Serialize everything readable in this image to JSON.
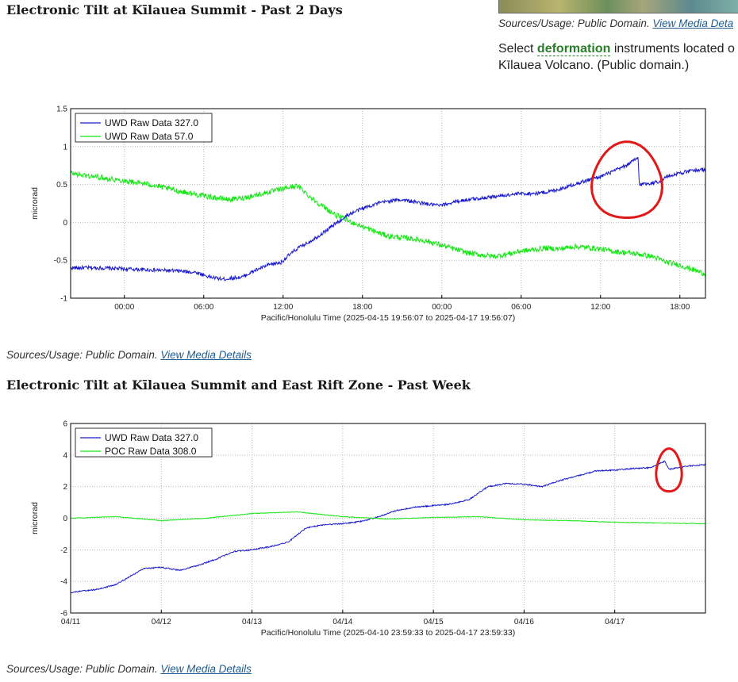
{
  "sidebar": {
    "caption_prefix": "Sources/Usage: Public Domain.",
    "caption_link": "View Media Deta",
    "text_before": "Select ",
    "keyword": "deformation",
    "text_after": " instruments located o",
    "text_line2": "Kīlauea Volcano. (Public domain.)"
  },
  "section1": {
    "heading": "Electronic Tilt at Kīlauea Summit - Past 2 Days",
    "caption_prefix": "Sources/Usage: Public Domain.",
    "caption_link": "View Media Details"
  },
  "section2": {
    "heading": "Electronic Tilt at Kīlauea Summit and East Rift Zone - Past Week",
    "caption_prefix": "Sources/Usage: Public Domain.",
    "caption_link": "View Media Details"
  },
  "chart_data": [
    {
      "type": "line",
      "xlabel": "Pacific/Honolulu Time (2025-04-15 19:56:07 to 2025-04-17 19:56:07)",
      "ylabel": "microrad",
      "x_unit": "hours since 2025-04-15 19:56:07",
      "xlim": [
        0,
        48
      ],
      "ylim": [
        -1,
        1.5
      ],
      "yticks": [
        "-1",
        "-0.5",
        "0",
        "0.5",
        "1",
        "1.5"
      ],
      "ytick_values": [
        -1,
        -0.5,
        0,
        0.5,
        1,
        1.5
      ],
      "xticks": [
        "00:00",
        "06:00",
        "12:00",
        "18:00",
        "00:00",
        "06:00",
        "12:00",
        "18:00"
      ],
      "xtick_values": [
        4.065,
        10.065,
        16.065,
        22.065,
        28.065,
        34.065,
        40.065,
        46.065
      ],
      "grid": true,
      "legend": "top-left",
      "series": [
        {
          "name": "UWD Raw Data 327.0",
          "color": "#1a1acc",
          "noise": 0.025,
          "x": [
            0,
            2,
            5,
            8,
            9.5,
            10.5,
            11.5,
            13,
            14,
            15,
            15.9,
            16.4,
            17.1,
            18,
            19,
            20,
            21,
            22,
            23,
            24,
            25,
            26,
            27,
            28,
            29,
            30,
            31,
            32,
            33,
            34,
            35,
            36,
            37,
            38,
            39,
            40,
            41,
            42,
            42.9,
            43.0,
            44,
            44.7,
            45,
            46,
            47,
            48
          ],
          "y": [
            -0.6,
            -0.6,
            -0.62,
            -0.64,
            -0.66,
            -0.72,
            -0.75,
            -0.72,
            -0.63,
            -0.56,
            -0.53,
            -0.45,
            -0.35,
            -0.26,
            -0.15,
            -0.02,
            0.1,
            0.18,
            0.24,
            0.28,
            0.3,
            0.27,
            0.24,
            0.22,
            0.27,
            0.3,
            0.32,
            0.34,
            0.36,
            0.38,
            0.38,
            0.4,
            0.44,
            0.5,
            0.55,
            0.6,
            0.67,
            0.75,
            0.85,
            0.5,
            0.52,
            0.55,
            0.6,
            0.65,
            0.68,
            0.7
          ]
        },
        {
          "name": "UWD Raw Data 57.0",
          "color": "#14e614",
          "noise": 0.035,
          "x": [
            0,
            1,
            2,
            4,
            6,
            8,
            10,
            12,
            13,
            15,
            17,
            17.5,
            18,
            19,
            20,
            21,
            22,
            23,
            24,
            25,
            26,
            27,
            28,
            29,
            30,
            31,
            32,
            33,
            34,
            35,
            36,
            37,
            38,
            39,
            40,
            41,
            42,
            43,
            44,
            45,
            46,
            47,
            48
          ],
          "y": [
            0.65,
            0.62,
            0.6,
            0.55,
            0.5,
            0.42,
            0.35,
            0.3,
            0.32,
            0.4,
            0.48,
            0.44,
            0.35,
            0.22,
            0.1,
            0.02,
            -0.05,
            -0.12,
            -0.18,
            -0.2,
            -0.22,
            -0.25,
            -0.3,
            -0.35,
            -0.4,
            -0.43,
            -0.45,
            -0.42,
            -0.38,
            -0.36,
            -0.34,
            -0.35,
            -0.32,
            -0.33,
            -0.35,
            -0.38,
            -0.4,
            -0.42,
            -0.45,
            -0.52,
            -0.56,
            -0.62,
            -0.68
          ]
        }
      ],
      "annotations": [
        {
          "type": "hand-drawn circle",
          "color": "#e01818",
          "around": "UWD offset near 14:40"
        }
      ]
    },
    {
      "type": "line",
      "xlabel": "Pacific/Honolulu Time (2025-04-10 23:59:33 to 2025-04-17 23:59:33)",
      "ylabel": "microrad",
      "x_unit": "days since 2025-04-11 00:00",
      "xlim": [
        0,
        7
      ],
      "ylim": [
        -6,
        6
      ],
      "yticks": [
        "-6",
        "-4",
        "-2",
        "0",
        "2",
        "4",
        "6"
      ],
      "ytick_values": [
        -6,
        -4,
        -2,
        0,
        2,
        4,
        6
      ],
      "xticks": [
        "04/11",
        "04/12",
        "04/13",
        "04/14",
        "04/15",
        "04/16",
        "04/17"
      ],
      "xtick_values": [
        0,
        1,
        2,
        3,
        4,
        5,
        6
      ],
      "grid": true,
      "legend": "top-left",
      "series": [
        {
          "name": "UWD Raw Data 327.0",
          "color": "#1a1acc",
          "noise": 0.04,
          "x": [
            0,
            0.3,
            0.5,
            0.8,
            1.0,
            1.2,
            1.4,
            1.6,
            1.8,
            2.0,
            2.2,
            2.4,
            2.6,
            2.8,
            3.0,
            3.2,
            3.4,
            3.6,
            3.8,
            4.0,
            4.2,
            4.4,
            4.6,
            4.8,
            5.0,
            5.2,
            5.4,
            5.6,
            5.8,
            6.0,
            6.2,
            6.4,
            6.55,
            6.6,
            6.8,
            7.0
          ],
          "y": [
            -4.7,
            -4.5,
            -4.2,
            -3.2,
            -3.1,
            -3.3,
            -3.0,
            -2.6,
            -2.1,
            -2.0,
            -1.8,
            -1.5,
            -0.6,
            -0.4,
            -0.35,
            -0.2,
            0.1,
            0.5,
            0.7,
            0.8,
            0.9,
            1.2,
            2.0,
            2.2,
            2.15,
            2.0,
            2.4,
            2.7,
            3.0,
            3.05,
            3.15,
            3.2,
            3.6,
            3.1,
            3.3,
            3.4
          ]
        },
        {
          "name": "POC Raw Data 308.0",
          "color": "#14e614",
          "noise": 0.02,
          "x": [
            0,
            0.5,
            1.0,
            1.5,
            2.0,
            2.5,
            3.0,
            3.5,
            4.0,
            4.5,
            5.0,
            5.5,
            6.0,
            6.5,
            7.0
          ],
          "y": [
            0.0,
            0.1,
            -0.15,
            0.0,
            0.3,
            0.4,
            0.1,
            -0.05,
            0.05,
            0.1,
            -0.1,
            -0.15,
            -0.25,
            -0.3,
            -0.35
          ]
        }
      ],
      "annotations": [
        {
          "type": "hand-drawn circle",
          "color": "#e01818",
          "around": "UWD offset on 04/17"
        }
      ]
    }
  ]
}
